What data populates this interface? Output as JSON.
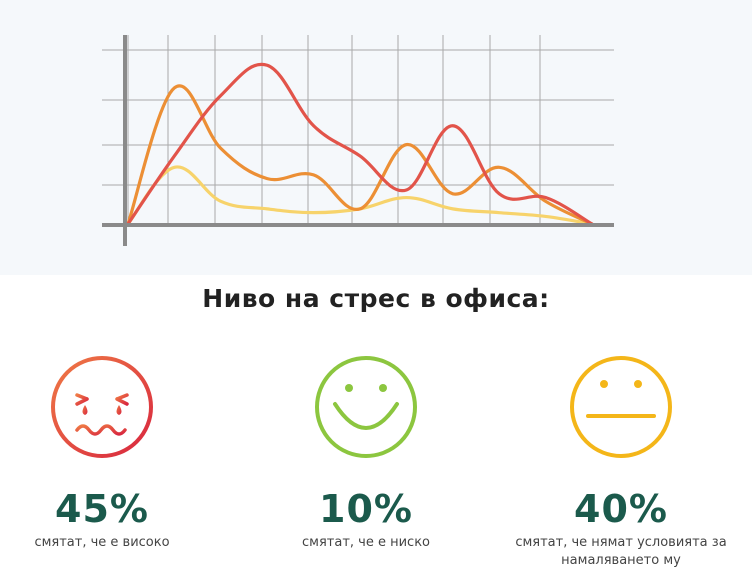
{
  "title": "Ниво на стрес в офиса:",
  "colors": {
    "red": "#e2544a",
    "orange": "#ec8f35",
    "yellow": "#f7d36b",
    "green": "#8cc63f",
    "gold": "#f4b619",
    "percent": "#1b5a4c",
    "grid": "#a9a9a9",
    "axis": "#8a8a8a"
  },
  "chart_data": {
    "type": "line",
    "grid": true,
    "x": [
      0,
      1,
      2,
      3,
      4,
      5,
      6,
      7,
      8,
      9,
      10
    ],
    "ylim": [
      0,
      5
    ],
    "series": [
      {
        "color": "#e2544a",
        "values": [
          0,
          1.8,
          3.4,
          4.2,
          2.6,
          1.8,
          0.9,
          2.6,
          0.8,
          0.7,
          0
        ]
      },
      {
        "color": "#ec8f35",
        "values": [
          0,
          3.6,
          2.0,
          1.2,
          1.3,
          0.4,
          2.1,
          0.8,
          1.5,
          0.6,
          0
        ]
      },
      {
        "color": "#f7d36b",
        "values": [
          0,
          1.5,
          0.6,
          0.4,
          0.3,
          0.4,
          0.7,
          0.4,
          0.3,
          0.2,
          0
        ]
      }
    ]
  },
  "stats": [
    {
      "percent": "45%",
      "caption": "смятат, че е високо",
      "face": "sad-face-icon"
    },
    {
      "percent": "10%",
      "caption": "смятат, че е ниско",
      "face": "smiling-face-icon"
    },
    {
      "percent": "40%",
      "caption": "смятат, че нямат условията за намаляването му",
      "face": "neutral-face-icon"
    }
  ]
}
